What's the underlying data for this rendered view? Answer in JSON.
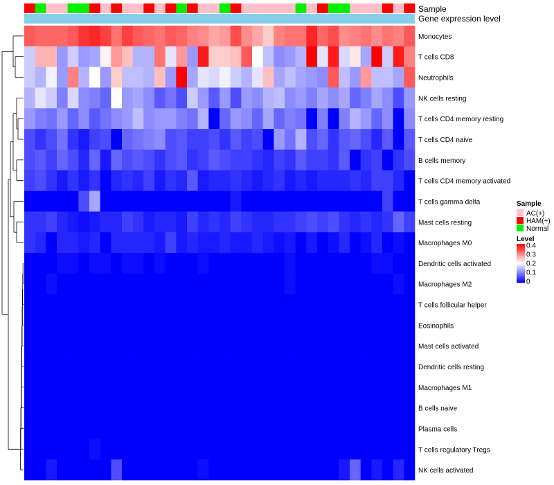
{
  "chart_data": {
    "type": "heatmap",
    "annotation_labels": {
      "sample": "Sample",
      "gene": "Gene expression level"
    },
    "rows": [
      "Monocytes",
      "T cells CD8",
      "Neutrophils",
      "NK cells resting",
      "T cells CD4 memory resting",
      "T cells CD4 naive",
      "B cells memory",
      "T cells CD4 memory activated",
      "T cells gamma delta",
      "Mast cells resting",
      "Macrophages M0",
      "Dendritic cells activated",
      "Macrophages M2",
      "T cells follicular helper",
      "Eosinophils",
      "Mast cells activated",
      "Dendritic cells resting",
      "Macrophages M1",
      "B cells naive",
      "Plasma cells",
      "T cells regulatory  Tregs",
      "NK cells activated"
    ],
    "sample_groups": [
      "HAM",
      "Normal",
      "AC",
      "AC",
      "Normal",
      "Normal",
      "HAM",
      "AC",
      "HAM",
      "AC",
      "AC",
      "HAM",
      "AC",
      "HAM",
      "Normal",
      "HAM",
      "AC",
      "AC",
      "Normal",
      "HAM",
      "AC",
      "AC",
      "AC",
      "AC",
      "AC",
      "Normal",
      "AC",
      "HAM",
      "Normal",
      "Normal",
      "AC",
      "AC",
      "AC",
      "HAM",
      "AC",
      "HAM"
    ],
    "values": [
      [
        0.33,
        0.32,
        0.32,
        0.32,
        0.33,
        0.36,
        0.37,
        0.35,
        0.31,
        0.35,
        0.33,
        0.32,
        0.31,
        0.33,
        0.32,
        0.3,
        0.29,
        0.27,
        0.28,
        0.34,
        0.29,
        0.27,
        0.24,
        0.3,
        0.31,
        0.31,
        0.37,
        0.32,
        0.34,
        0.29,
        0.3,
        0.31,
        0.29,
        0.31,
        0.3,
        0.33
      ],
      [
        0.16,
        0.26,
        0.26,
        0.12,
        0.16,
        0.12,
        0.13,
        0.21,
        0.28,
        0.25,
        0.14,
        0.14,
        0.31,
        0.18,
        0.28,
        0.12,
        0.38,
        0.24,
        0.24,
        0.25,
        0.33,
        0.2,
        0.15,
        0.11,
        0.12,
        0.14,
        0.4,
        0.18,
        0.38,
        0.17,
        0.22,
        0.13,
        0.4,
        0.16,
        0.38,
        0.3
      ],
      [
        0.16,
        0.14,
        0.19,
        0.12,
        0.3,
        0.14,
        0.2,
        0.12,
        0.24,
        0.15,
        0.15,
        0.14,
        0.25,
        0.12,
        0.4,
        0.13,
        0.18,
        0.17,
        0.19,
        0.16,
        0.14,
        0.18,
        0.25,
        0.13,
        0.15,
        0.13,
        0.12,
        0.11,
        0.33,
        0.15,
        0.12,
        0.28,
        0.15,
        0.15,
        0.13,
        0.33
      ],
      [
        0.14,
        0.18,
        0.16,
        0.1,
        0.17,
        0.11,
        0.1,
        0.08,
        0.2,
        0.12,
        0.13,
        0.11,
        0.07,
        0.09,
        0.06,
        0.16,
        0.12,
        0.07,
        0.12,
        0.06,
        0.12,
        0.11,
        0.14,
        0.15,
        0.11,
        0.12,
        0.1,
        0.13,
        0.11,
        0.13,
        0.08,
        0.1,
        0.13,
        0.11,
        0.06,
        0.12
      ],
      [
        0.12,
        0.1,
        0.09,
        0.12,
        0.08,
        0.11,
        0.07,
        0.09,
        0.11,
        0.12,
        0.15,
        0.11,
        0.12,
        0.12,
        0.1,
        0.09,
        0.14,
        0.0,
        0.08,
        0.12,
        0.11,
        0.08,
        0.13,
        0.08,
        0.1,
        0.09,
        0.0,
        0.1,
        0.0,
        0.1,
        0.14,
        0.12,
        0.08,
        0.11,
        0.0,
        0.11
      ],
      [
        0.06,
        0.04,
        0.06,
        0.09,
        0.04,
        0.02,
        0.05,
        0.06,
        0.0,
        0.08,
        0.09,
        0.1,
        0.11,
        0.06,
        0.07,
        0.05,
        0.05,
        0.06,
        0.04,
        0.07,
        0.05,
        0.06,
        0.0,
        0.12,
        0.09,
        0.14,
        0.06,
        0.08,
        0.04,
        0.07,
        0.08,
        0.06,
        0.03,
        0.07,
        0.0,
        0.07
      ],
      [
        0.06,
        0.07,
        0.05,
        0.08,
        0.06,
        0.03,
        0.08,
        0.02,
        0.08,
        0.06,
        0.07,
        0.06,
        0.04,
        0.06,
        0.07,
        0.04,
        0.05,
        0.07,
        0.06,
        0.05,
        0.05,
        0.04,
        0.03,
        0.05,
        0.04,
        0.07,
        0.05,
        0.05,
        0.04,
        0.07,
        0.0,
        0.04,
        0.05,
        0.0,
        0.04,
        0.06
      ],
      [
        0.05,
        0.06,
        0.04,
        0.02,
        0.04,
        0.02,
        0.04,
        0.0,
        0.03,
        0.04,
        0.03,
        0.05,
        0.02,
        0.04,
        0.03,
        0.07,
        0.02,
        0.03,
        0.03,
        0.04,
        0.03,
        0.02,
        0.03,
        0.04,
        0.02,
        0.03,
        0.02,
        0.03,
        0.03,
        0.03,
        0.04,
        0.03,
        0.05,
        0.05,
        0.03,
        0.0
      ],
      [
        0.0,
        0.0,
        0.0,
        0.0,
        0.0,
        0.06,
        0.13,
        0.0,
        0.0,
        0.0,
        0.0,
        0.0,
        0.0,
        0.0,
        0.0,
        0.0,
        0.0,
        0.0,
        0.0,
        0.02,
        0.0,
        0.0,
        0.0,
        0.0,
        0.0,
        0.0,
        0.0,
        0.0,
        0.0,
        0.0,
        0.0,
        0.0,
        0.0,
        0.05,
        0.0,
        0.0
      ],
      [
        0.04,
        0.04,
        0.05,
        0.03,
        0.02,
        0.01,
        0.02,
        0.03,
        0.03,
        0.05,
        0.04,
        0.02,
        0.03,
        0.03,
        0.02,
        0.05,
        0.03,
        0.04,
        0.03,
        0.05,
        0.04,
        0.03,
        0.03,
        0.04,
        0.04,
        0.05,
        0.06,
        0.05,
        0.06,
        0.04,
        0.03,
        0.04,
        0.03,
        0.04,
        0.08,
        0.05
      ],
      [
        0.04,
        0.03,
        0.0,
        0.03,
        0.03,
        0.02,
        0.03,
        0.0,
        0.03,
        0.03,
        0.03,
        0.03,
        0.02,
        0.05,
        0.02,
        0.03,
        0.02,
        0.02,
        0.03,
        0.02,
        0.02,
        0.03,
        0.02,
        0.01,
        0.02,
        0.0,
        0.02,
        0.0,
        0.01,
        0.03,
        0.0,
        0.01,
        0.03,
        0.0,
        0.01,
        0.0
      ],
      [
        0.0,
        0.0,
        0.0,
        0.01,
        0.01,
        0.0,
        0.01,
        0.01,
        0.0,
        0.01,
        0.01,
        0.0,
        0.01,
        0.0,
        0.0,
        0.0,
        0.01,
        0.0,
        0.0,
        0.0,
        0.0,
        0.0,
        0.0,
        0.0,
        0.01,
        0.0,
        0.0,
        0.0,
        0.0,
        0.0,
        0.0,
        0.0,
        0.01,
        0.01,
        0.0,
        0.0
      ],
      [
        0.0,
        0.0,
        0.01,
        0.0,
        0.0,
        0.0,
        0.0,
        0.0,
        0.0,
        0.0,
        0.0,
        0.0,
        0.0,
        0.0,
        0.0,
        0.0,
        0.0,
        0.0,
        0.0,
        0.0,
        0.0,
        0.0,
        0.0,
        0.0,
        0.01,
        0.0,
        0.0,
        0.0,
        0.0,
        0.0,
        0.0,
        0.0,
        0.0,
        0.0,
        0.01,
        0.0
      ],
      [
        0.0,
        0.0,
        0.0,
        0.0,
        0.0,
        0.0,
        0.0,
        0.0,
        0.0,
        0.0,
        0.0,
        0.0,
        0.0,
        0.0,
        0.0,
        0.0,
        0.0,
        0.0,
        0.0,
        0.0,
        0.0,
        0.0,
        0.0,
        0.0,
        0.0,
        0.0,
        0.0,
        0.0,
        0.0,
        0.0,
        0.0,
        0.0,
        0.0,
        0.0,
        0.0,
        0.0
      ],
      [
        0.0,
        0.0,
        0.0,
        0.0,
        0.0,
        0.0,
        0.0,
        0.0,
        0.0,
        0.0,
        0.0,
        0.0,
        0.0,
        0.0,
        0.0,
        0.0,
        0.0,
        0.0,
        0.0,
        0.0,
        0.0,
        0.0,
        0.0,
        0.0,
        0.0,
        0.0,
        0.0,
        0.0,
        0.0,
        0.0,
        0.0,
        0.0,
        0.0,
        0.0,
        0.0,
        0.0
      ],
      [
        0.0,
        0.0,
        0.0,
        0.0,
        0.0,
        0.0,
        0.0,
        0.0,
        0.0,
        0.0,
        0.0,
        0.0,
        0.0,
        0.0,
        0.0,
        0.0,
        0.0,
        0.0,
        0.0,
        0.0,
        0.0,
        0.0,
        0.0,
        0.0,
        0.0,
        0.0,
        0.0,
        0.0,
        0.0,
        0.0,
        0.0,
        0.0,
        0.0,
        0.0,
        0.0,
        0.0
      ],
      [
        0.0,
        0.0,
        0.0,
        0.0,
        0.0,
        0.0,
        0.0,
        0.0,
        0.0,
        0.0,
        0.0,
        0.0,
        0.0,
        0.0,
        0.0,
        0.0,
        0.0,
        0.0,
        0.0,
        0.0,
        0.0,
        0.0,
        0.0,
        0.0,
        0.0,
        0.0,
        0.0,
        0.0,
        0.0,
        0.0,
        0.0,
        0.0,
        0.0,
        0.0,
        0.0,
        0.0
      ],
      [
        0.0,
        0.0,
        0.0,
        0.0,
        0.0,
        0.0,
        0.0,
        0.0,
        0.0,
        0.0,
        0.0,
        0.0,
        0.0,
        0.0,
        0.0,
        0.0,
        0.0,
        0.0,
        0.0,
        0.0,
        0.0,
        0.0,
        0.0,
        0.0,
        0.0,
        0.0,
        0.0,
        0.0,
        0.0,
        0.0,
        0.0,
        0.0,
        0.0,
        0.0,
        0.0,
        0.0
      ],
      [
        0.0,
        0.0,
        0.0,
        0.0,
        0.0,
        0.0,
        0.0,
        0.0,
        0.0,
        0.0,
        0.0,
        0.0,
        0.0,
        0.0,
        0.0,
        0.0,
        0.0,
        0.0,
        0.0,
        0.0,
        0.0,
        0.0,
        0.0,
        0.0,
        0.0,
        0.0,
        0.0,
        0.0,
        0.0,
        0.0,
        0.0,
        0.0,
        0.0,
        0.0,
        0.0,
        0.0
      ],
      [
        0.0,
        0.0,
        0.0,
        0.0,
        0.0,
        0.0,
        0.0,
        0.0,
        0.0,
        0.0,
        0.0,
        0.0,
        0.0,
        0.0,
        0.0,
        0.0,
        0.0,
        0.0,
        0.0,
        0.0,
        0.0,
        0.0,
        0.0,
        0.0,
        0.0,
        0.0,
        0.0,
        0.0,
        0.0,
        0.0,
        0.0,
        0.0,
        0.0,
        0.0,
        0.0,
        0.0
      ],
      [
        0.0,
        0.0,
        0.0,
        0.0,
        0.0,
        0.0,
        0.01,
        0.0,
        0.0,
        0.0,
        0.0,
        0.0,
        0.0,
        0.0,
        0.0,
        0.0,
        0.0,
        0.0,
        0.0,
        0.0,
        0.0,
        0.0,
        0.0,
        0.0,
        0.0,
        0.0,
        0.0,
        0.0,
        0.0,
        0.0,
        0.0,
        0.0,
        0.0,
        0.0,
        0.0,
        0.0
      ],
      [
        0.0,
        0.0,
        0.02,
        0.0,
        0.0,
        0.0,
        0.0,
        0.0,
        0.06,
        0.0,
        0.0,
        0.0,
        0.0,
        0.0,
        0.0,
        0.0,
        0.01,
        0.0,
        0.0,
        0.0,
        0.0,
        0.0,
        0.0,
        0.0,
        0.0,
        0.0,
        0.0,
        0.0,
        0.0,
        0.02,
        0.08,
        0.0,
        0.02,
        0.0,
        0.03,
        0.0
      ]
    ],
    "legend": {
      "sample_title": "Sample",
      "sample_items": [
        {
          "key": "AC",
          "label": "AC(+)",
          "color": "#FFC0CB"
        },
        {
          "key": "HAM",
          "label": "HAM(+)",
          "color": "#FF0000"
        },
        {
          "key": "Normal",
          "label": "Normal",
          "color": "#00EE00"
        }
      ],
      "level_title": "Level",
      "level_ticks": [
        "0.4",
        "0.3",
        "0.2",
        "0.1",
        "0"
      ],
      "level_range": [
        0,
        0.4
      ]
    },
    "colors": {
      "low": "#0000FF",
      "mid": "#FFFFFF",
      "high": "#FF0000",
      "gene_bar": "#87CEEB"
    }
  }
}
